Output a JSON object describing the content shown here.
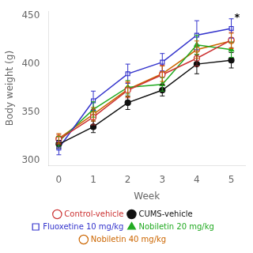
{
  "chart_data": {
    "type": "line",
    "xlabel": "Week",
    "ylabel": "Body weight (g)",
    "x": [
      0,
      1,
      2,
      3,
      4,
      5
    ],
    "series": [
      {
        "name": "Control-vehicle",
        "color": "#cc3333",
        "marker": "circle-open",
        "line_style": "solid",
        "values": [
          322,
          345,
          373,
          389,
          406,
          425
        ],
        "errors": [
          5,
          8,
          8,
          10,
          8,
          8
        ]
      },
      {
        "name": "CUMS-vehicle",
        "color": "#111111",
        "marker": "circle",
        "line_style": "solid",
        "values": [
          317,
          335,
          360,
          373,
          400,
          404
        ],
        "errors": [
          4,
          6,
          7,
          6,
          10,
          8
        ]
      },
      {
        "name": "Fluoxetine 10 mg/kg",
        "color": "#3333cc",
        "marker": "square-open",
        "line_style": "solid",
        "values": [
          313,
          362,
          390,
          402,
          430,
          437
        ],
        "errors": [
          7,
          10,
          10,
          9,
          15,
          10
        ]
      },
      {
        "name": "Nobiletin 20 mg/kg",
        "color": "#22aa22",
        "marker": "triangle",
        "line_style": "solid",
        "values": [
          320,
          353,
          376,
          379,
          420,
          415
        ],
        "errors": [
          5,
          8,
          7,
          7,
          10,
          8
        ]
      },
      {
        "name": "Nobiletin 40 mg/kg",
        "color": "#cc6600",
        "marker": "circle-open",
        "line_style": "solid",
        "values": [
          323,
          348,
          374,
          390,
          415,
          424
        ],
        "errors": [
          5,
          7,
          8,
          8,
          9,
          8
        ]
      }
    ],
    "xlim": [
      -0.3,
      5.4
    ],
    "xticks": [
      0,
      1,
      2,
      3,
      4,
      5
    ],
    "ylim": [
      295,
      455
    ],
    "yticks": [
      300,
      350,
      400,
      450
    ],
    "grid": false,
    "legend": "bottom",
    "annotations": [
      {
        "text": "*",
        "x": 5,
        "series": "Fluoxetine 10 mg/kg"
      }
    ]
  }
}
